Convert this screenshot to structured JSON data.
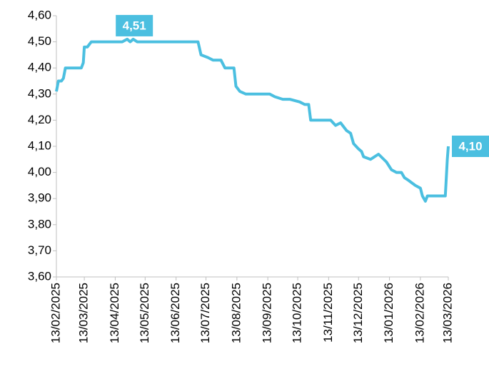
{
  "chart_data": {
    "type": "line",
    "series": [
      {
        "color": "#4bbfe0",
        "x": [
          "13/02/2025",
          "15/02/2025",
          "18/02/2025",
          "20/02/2025",
          "22/02/2025",
          "10/03/2025",
          "12/03/2025",
          "13/03/2025",
          "16/03/2025",
          "20/03/2025",
          "20/04/2025",
          "25/04/2025",
          "28/04/2025",
          "01/05/2025",
          "05/05/2025",
          "28/06/2025",
          "05/07/2025",
          "08/07/2025",
          "15/07/2025",
          "20/07/2025",
          "28/07/2025",
          "01/08/2025",
          "10/08/2025",
          "12/08/2025",
          "16/08/2025",
          "22/08/2025",
          "15/09/2025",
          "20/09/2025",
          "28/09/2025",
          "05/10/2025",
          "15/10/2025",
          "20/10/2025",
          "24/10/2025",
          "26/10/2025",
          "15/11/2025",
          "20/11/2025",
          "25/11/2025",
          "01/12/2025",
          "05/12/2025",
          "08/12/2025",
          "13/12/2025",
          "16/12/2025",
          "18/12/2025",
          "25/12/2025",
          "02/01/2026",
          "10/01/2026",
          "15/01/2026",
          "20/01/2026",
          "25/01/2026",
          "28/01/2026",
          "01/02/2026",
          "08/02/2026",
          "13/02/2026",
          "15/02/2026",
          "18/02/2026",
          "20/02/2026",
          "05/03/2026",
          "10/03/2026",
          "12/03/2026",
          "13/03/2026"
        ],
        "values": [
          4.31,
          4.35,
          4.35,
          4.36,
          4.4,
          4.4,
          4.42,
          4.48,
          4.48,
          4.5,
          4.5,
          4.51,
          4.5,
          4.51,
          4.5,
          4.5,
          4.5,
          4.45,
          4.44,
          4.43,
          4.43,
          4.4,
          4.4,
          4.33,
          4.31,
          4.3,
          4.3,
          4.29,
          4.28,
          4.28,
          4.27,
          4.26,
          4.26,
          4.2,
          4.2,
          4.18,
          4.19,
          4.16,
          4.15,
          4.11,
          4.09,
          4.08,
          4.06,
          4.05,
          4.07,
          4.04,
          4.01,
          4.0,
          4.0,
          3.98,
          3.97,
          3.95,
          3.94,
          3.91,
          3.89,
          3.91,
          3.91,
          3.91,
          4.05,
          4.1
        ]
      }
    ],
    "annotations": [
      {
        "text": "4,51",
        "x": "25/04/2025",
        "y": 4.51
      },
      {
        "text": "4,10",
        "x": "13/03/2026",
        "y": 4.1
      }
    ],
    "xlim": [
      "13/02/2025",
      "13/03/2026"
    ],
    "xticks": [
      "13/02/2025",
      "13/03/2025",
      "13/04/2025",
      "13/05/2025",
      "13/06/2025",
      "13/07/2025",
      "13/08/2025",
      "13/09/2025",
      "13/10/2025",
      "13/11/2025",
      "13/12/2025",
      "13/01/2026",
      "13/02/2026",
      "13/03/2026"
    ],
    "ylim": [
      3.6,
      4.6
    ],
    "yticks": [
      {
        "value": 3.6,
        "label": "3,60"
      },
      {
        "value": 3.7,
        "label": "3,70"
      },
      {
        "value": 3.8,
        "label": "3,80"
      },
      {
        "value": 3.9,
        "label": "3,90"
      },
      {
        "value": 4.0,
        "label": "4,00"
      },
      {
        "value": 4.1,
        "label": "4,10"
      },
      {
        "value": 4.2,
        "label": "4,20"
      },
      {
        "value": 4.3,
        "label": "4,30"
      },
      {
        "value": 4.4,
        "label": "4,40"
      },
      {
        "value": 4.5,
        "label": "4,50"
      },
      {
        "value": 4.6,
        "label": "4,60"
      }
    ]
  }
}
